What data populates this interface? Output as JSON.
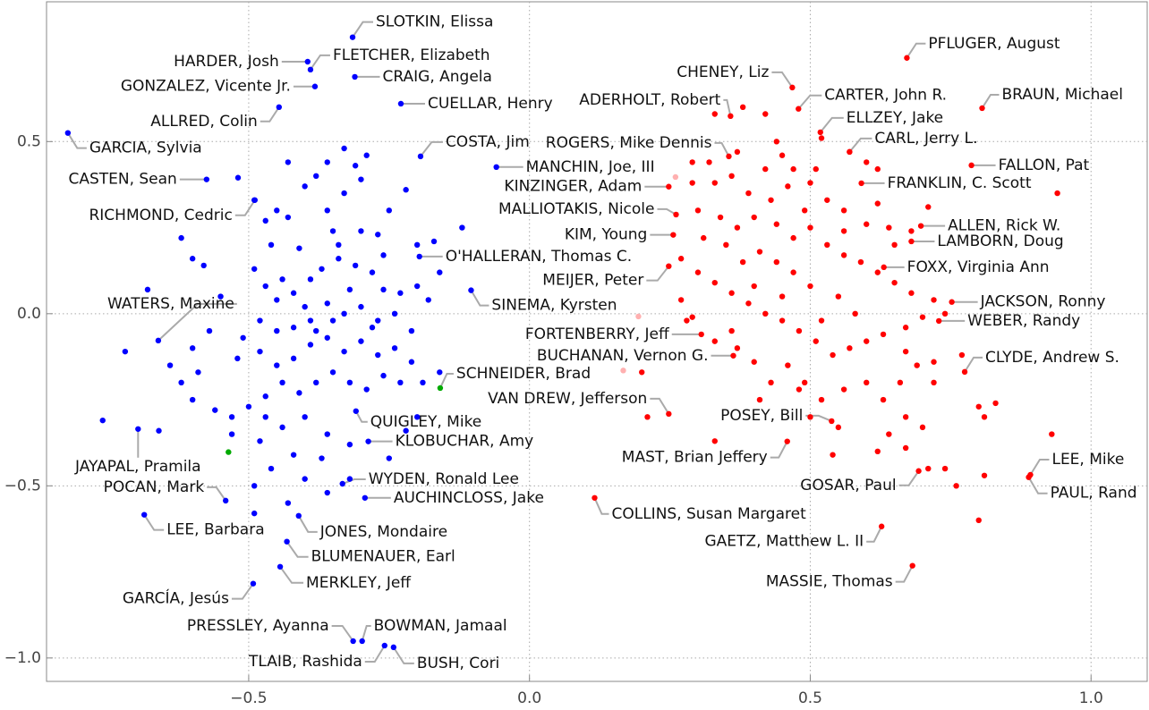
{
  "chart_data": {
    "type": "scatter",
    "xlim": [
      -0.86,
      1.1
    ],
    "ylim": [
      -1.068,
      0.906
    ],
    "xticks": [
      {
        "value": -0.5,
        "label": "−0.5"
      },
      {
        "value": 0,
        "label": "0.0"
      },
      0.5,
      {
        "value": 1,
        "label": "1.0"
      }
    ],
    "yticks": [
      {
        "value": -1,
        "label": "−1.0"
      },
      {
        "value": -0.5,
        "label": "−0.5"
      },
      {
        "value": 0,
        "label": "0.0"
      },
      0.5
    ],
    "grid": true,
    "series": [
      {
        "color": "#0000ff",
        "x": [
          -0.315,
          -0.395,
          -0.39,
          -0.311,
          -0.382,
          -0.229,
          -0.446,
          -0.822,
          -0.194,
          -0.059,
          -0.575,
          -0.489,
          -0.196,
          -0.104,
          -0.661,
          -0.309,
          -0.287,
          -0.697,
          -0.333,
          -0.541,
          -0.293,
          -0.686,
          -0.411,
          -0.432,
          -0.444,
          -0.492,
          -0.314,
          -0.298,
          -0.258,
          -0.242,
          -0.62,
          -0.6,
          -0.58,
          -0.519,
          -0.49,
          -0.47,
          -0.45,
          -0.43,
          -0.4,
          -0.38,
          -0.36,
          -0.33,
          -0.31,
          -0.29,
          -0.3,
          -0.33,
          -0.36,
          -0.35,
          -0.3,
          -0.27,
          -0.25,
          -0.22,
          -0.2,
          -0.17,
          -0.16,
          -0.12,
          -0.41,
          -0.46,
          -0.49,
          -0.47,
          -0.45,
          -0.42,
          -0.39,
          -0.37,
          -0.34,
          -0.31,
          -0.28,
          -0.26,
          -0.23,
          -0.2,
          -0.18,
          -0.24,
          -0.27,
          -0.3,
          -0.33,
          -0.36,
          -0.39,
          -0.42,
          -0.45,
          -0.48,
          -0.51,
          -0.52,
          -0.48,
          -0.45,
          -0.42,
          -0.39,
          -0.36,
          -0.33,
          -0.3,
          -0.27,
          -0.24,
          -0.21,
          -0.19,
          -0.23,
          -0.26,
          -0.29,
          -0.32,
          -0.35,
          -0.38,
          -0.41,
          -0.44,
          -0.47,
          -0.5,
          -0.53,
          -0.56,
          -0.6,
          -0.62,
          -0.64,
          -0.59,
          -0.72,
          -0.76,
          -0.66,
          -0.53,
          -0.48,
          -0.44,
          -0.4,
          -0.36,
          -0.32,
          -0.37,
          -0.42,
          -0.46,
          -0.49,
          -0.36,
          -0.32,
          -0.25,
          -0.22,
          -0.2,
          -0.16,
          -0.55,
          -0.57,
          -0.68,
          -0.38,
          -0.4,
          -0.35,
          -0.28,
          -0.44,
          -0.32,
          -0.26,
          -0.21,
          -0.47,
          -0.6,
          -0.4,
          -0.34,
          -0.43,
          -0.49,
          -0.43
        ],
        "y": [
          0.803,
          0.732,
          0.709,
          0.688,
          0.66,
          0.61,
          0.6,
          0.525,
          0.457,
          0.426,
          0.39,
          0.33,
          0.166,
          0.068,
          -0.078,
          -0.283,
          -0.371,
          -0.335,
          -0.494,
          -0.543,
          -0.535,
          -0.584,
          -0.587,
          -0.662,
          -0.735,
          -0.784,
          -0.951,
          -0.951,
          -0.964,
          -0.969,
          0.22,
          0.16,
          0.14,
          0.395,
          0.33,
          0.27,
          0.3,
          0.28,
          0.37,
          0.4,
          0.44,
          0.48,
          0.43,
          0.46,
          0.39,
          0.35,
          0.3,
          0.24,
          0.24,
          0.23,
          0.3,
          0.36,
          0.2,
          0.21,
          0.12,
          0.25,
          0.19,
          0.2,
          0.13,
          0.08,
          0.04,
          0.06,
          0.1,
          0.13,
          0.16,
          0.14,
          0.12,
          0.07,
          0.06,
          0.08,
          0.04,
          0.0,
          -0.02,
          0.02,
          0.0,
          0.03,
          -0.02,
          -0.04,
          -0.05,
          -0.02,
          -0.07,
          -0.13,
          -0.11,
          -0.15,
          -0.13,
          -0.09,
          -0.07,
          -0.11,
          -0.08,
          -0.12,
          -0.1,
          -0.14,
          -0.2,
          -0.2,
          -0.18,
          -0.22,
          -0.2,
          -0.17,
          -0.2,
          -0.23,
          -0.2,
          -0.24,
          -0.27,
          -0.3,
          -0.28,
          -0.25,
          -0.2,
          -0.15,
          -0.17,
          -0.11,
          -0.31,
          -0.34,
          -0.35,
          -0.37,
          -0.33,
          -0.3,
          -0.35,
          -0.38,
          -0.42,
          -0.41,
          -0.45,
          -0.5,
          -0.52,
          -0.48,
          -0.42,
          -0.34,
          -0.3,
          -0.17,
          0.05,
          -0.05,
          0.07,
          -0.05,
          0.02,
          -0.02,
          -0.04,
          0.1,
          0.07,
          0.17,
          -0.05,
          -0.3,
          -0.1,
          -0.48,
          0.2,
          0.44,
          -0.58,
          -0.55
        ],
        "labels": [
          "SLOTKIN, Elissa",
          "HARDER, Josh",
          "FLETCHER, Elizabeth",
          "CRAIG, Angela",
          "GONZALEZ, Vicente Jr.",
          "CUELLAR, Henry",
          "ALLRED, Colin",
          "GARCIA, Sylvia",
          "COSTA, Jim",
          "MANCHIN, Joe, III",
          "CASTEN, Sean",
          "RICHMOND, Cedric",
          "O'HALLERAN, Thomas C.",
          "SINEMA, Kyrsten",
          "WATERS, Maxine",
          "QUIGLEY, Mike",
          "KLOBUCHAR, Amy",
          "JAYAPAL, Pramila",
          "WYDEN, Ronald Lee",
          "POCAN, Mark",
          "AUCHINCLOSS, Jake",
          "LEE, Barbara",
          "JONES, Mondaire",
          "BLUMENAUER, Earl",
          "MERKLEY, Jeff",
          "GARCÍA, Jesús",
          "PRESSLEY, Ayanna",
          "BOWMAN, Jamaal",
          "TLAIB, Rashida",
          "BUSH, Cori",
          null,
          null,
          null,
          null,
          null,
          null,
          null,
          null,
          null,
          null,
          null,
          null,
          null,
          null,
          null,
          null,
          null,
          null,
          null,
          null,
          null,
          null,
          null,
          null,
          null,
          null,
          null,
          null,
          null,
          null,
          null,
          null,
          null,
          null,
          null,
          null,
          null,
          null,
          null,
          null,
          null,
          null,
          null,
          null,
          null,
          null,
          null,
          null,
          null,
          null,
          null,
          null,
          null,
          null,
          null,
          null,
          null,
          null,
          null,
          null,
          null,
          null,
          null,
          null,
          null,
          null,
          null,
          null,
          null,
          null,
          null,
          null,
          null,
          null,
          null,
          null,
          null,
          null,
          null,
          null,
          null,
          null,
          null,
          null,
          null,
          null,
          null,
          null,
          null,
          null,
          null,
          null,
          null,
          null,
          null,
          null,
          null,
          null,
          null,
          null,
          null,
          null,
          null,
          null,
          null,
          null,
          null,
          null,
          null,
          null,
          null,
          null,
          null,
          null,
          null,
          null
        ]
      },
      {
        "color": "#ff0000",
        "x": [
          0.672,
          0.468,
          0.479,
          0.358,
          0.806,
          0.518,
          0.57,
          0.355,
          0.787,
          0.591,
          0.248,
          0.261,
          0.697,
          0.256,
          0.68,
          0.631,
          0.248,
          0.752,
          0.729,
          0.306,
          0.363,
          0.775,
          0.248,
          0.538,
          0.459,
          0.892,
          0.693,
          0.889,
          0.116,
          0.627,
          0.682,
          0.33,
          0.38,
          0.42,
          0.44,
          0.52,
          0.57,
          0.6,
          0.62,
          0.51,
          0.47,
          0.42,
          0.37,
          0.32,
          0.29,
          0.29,
          0.33,
          0.36,
          0.39,
          0.43,
          0.46,
          0.5,
          0.53,
          0.56,
          0.6,
          0.64,
          0.68,
          0.71,
          0.3,
          0.34,
          0.37,
          0.4,
          0.44,
          0.47,
          0.5,
          0.53,
          0.56,
          0.59,
          0.62,
          0.65,
          0.68,
          0.72,
          0.74,
          0.7,
          0.67,
          0.63,
          0.6,
          0.57,
          0.54,
          0.51,
          0.48,
          0.45,
          0.42,
          0.39,
          0.36,
          0.33,
          0.3,
          0.27,
          0.27,
          0.28,
          0.33,
          0.37,
          0.4,
          0.43,
          0.41,
          0.46,
          0.49,
          0.52,
          0.56,
          0.6,
          0.63,
          0.66,
          0.69,
          0.72,
          0.72,
          0.67,
          0.64,
          0.67,
          0.7,
          0.62,
          0.55,
          0.5,
          0.48,
          0.54,
          0.8,
          0.83,
          0.81,
          0.77,
          0.76,
          0.81,
          0.93,
          0.8,
          0.67,
          0.5,
          0.47,
          0.44,
          0.41,
          0.38,
          0.35,
          0.4,
          0.45,
          0.55,
          0.58,
          0.52,
          0.62,
          0.65,
          0.56,
          0.49,
          0.45,
          0.2,
          0.21,
          0.33,
          0.94,
          0.74,
          0.71,
          0.29,
          0.36,
          0.31
        ],
        "y": [
          0.743,
          0.657,
          0.595,
          0.574,
          0.597,
          0.527,
          0.47,
          0.457,
          0.431,
          0.379,
          0.369,
          0.288,
          0.255,
          0.229,
          0.21,
          0.135,
          0.138,
          0.034,
          -0.021,
          -0.06,
          -0.122,
          -0.169,
          -0.291,
          -0.312,
          -0.371,
          -0.468,
          -0.457,
          -0.475,
          -0.535,
          -0.618,
          -0.732,
          0.58,
          0.6,
          0.58,
          0.5,
          0.51,
          0.47,
          0.44,
          0.42,
          0.42,
          0.42,
          0.42,
          0.47,
          0.44,
          0.44,
          0.38,
          0.38,
          0.4,
          0.35,
          0.33,
          0.37,
          0.38,
          0.33,
          0.3,
          0.26,
          0.25,
          0.24,
          0.31,
          0.3,
          0.28,
          0.25,
          0.28,
          0.26,
          0.22,
          0.25,
          0.2,
          0.17,
          0.15,
          0.12,
          0.09,
          0.06,
          0.04,
          0.0,
          -0.01,
          -0.04,
          -0.06,
          -0.08,
          -0.1,
          -0.12,
          -0.08,
          -0.05,
          -0.02,
          0.0,
          0.03,
          0.06,
          0.09,
          0.12,
          0.16,
          0.04,
          -0.02,
          -0.08,
          -0.1,
          -0.14,
          -0.2,
          -0.25,
          -0.15,
          -0.2,
          -0.25,
          -0.22,
          -0.2,
          -0.25,
          -0.2,
          -0.15,
          -0.14,
          -0.2,
          -0.3,
          -0.35,
          -0.39,
          -0.33,
          -0.4,
          -0.33,
          -0.3,
          -0.22,
          -0.41,
          -0.27,
          -0.26,
          -0.3,
          -0.12,
          -0.5,
          -0.47,
          -0.35,
          -0.6,
          -0.11,
          0.08,
          0.12,
          0.15,
          0.18,
          0.15,
          0.2,
          0.08,
          0.05,
          0.05,
          0.0,
          -0.02,
          0.32,
          0.2,
          0.24,
          0.3,
          0.46,
          -0.17,
          -0.3,
          -0.37,
          0.35,
          -0.45,
          -0.45,
          -0.01,
          -0.05,
          0.22
        ],
        "labels": [
          "PFLUGER, August",
          "CHENEY, Liz",
          "CARTER, John R.",
          "ADERHOLT, Robert",
          "BRAUN, Michael",
          "ELLZEY, Jake",
          "CARL, Jerry L.",
          "ROGERS, Mike Dennis",
          "FALLON, Pat",
          "FRANKLIN, C. Scott",
          "KINZINGER, Adam",
          "MALLIOTAKIS, Nicole",
          "ALLEN, Rick W.",
          "KIM, Young",
          "LAMBORN, Doug",
          "FOXX, Virginia Ann",
          "MEIJER, Peter",
          "JACKSON, Ronny",
          "WEBER, Randy",
          "FORTENBERRY, Jeff",
          "BUCHANAN, Vernon G.",
          "CLYDE, Andrew S.",
          "VAN DREW, Jefferson",
          "POSEY, Bill",
          "MAST, Brian Jeffery",
          "LEE, Mike",
          "GOSAR, Paul",
          "PAUL, Rand",
          "COLLINS, Susan Margaret",
          "GAETZ, Matthew L. II",
          "MASSIE, Thomas",
          null,
          null,
          null,
          null,
          null,
          null,
          null,
          null,
          null,
          null,
          null,
          null,
          null,
          null,
          null,
          null,
          null,
          null,
          null,
          null,
          null,
          null,
          null,
          null,
          null,
          null,
          null,
          null,
          null,
          null,
          null,
          null,
          null,
          null,
          null,
          null,
          null,
          null,
          null,
          null,
          null,
          null,
          null,
          null,
          null,
          null,
          null,
          null,
          null,
          null,
          null,
          null,
          null,
          null,
          null,
          null,
          null,
          null,
          null,
          null,
          null,
          null,
          null,
          null,
          null,
          null,
          null,
          null,
          null,
          null,
          null,
          null,
          null,
          null,
          null,
          null,
          null,
          null,
          null,
          null,
          null,
          null,
          null,
          null,
          null,
          null,
          null,
          null,
          null,
          null,
          null,
          null,
          null,
          null,
          null,
          null,
          null,
          null,
          null,
          null,
          null,
          null,
          null,
          null,
          null,
          null,
          null,
          null,
          null,
          null,
          null
        ]
      },
      {
        "color": "#ffb0b0",
        "x": [
          0.26,
          0.194,
          0.167
        ],
        "y": [
          0.397,
          -0.008,
          -0.165
        ],
        "labels": [
          null,
          null,
          null
        ]
      },
      {
        "color": "#00aa00",
        "x": [
          -0.159,
          -0.536
        ],
        "y": [
          -0.216,
          -0.402
        ],
        "labels": [
          "SCHNEIDER, Brad",
          null
        ]
      }
    ]
  }
}
